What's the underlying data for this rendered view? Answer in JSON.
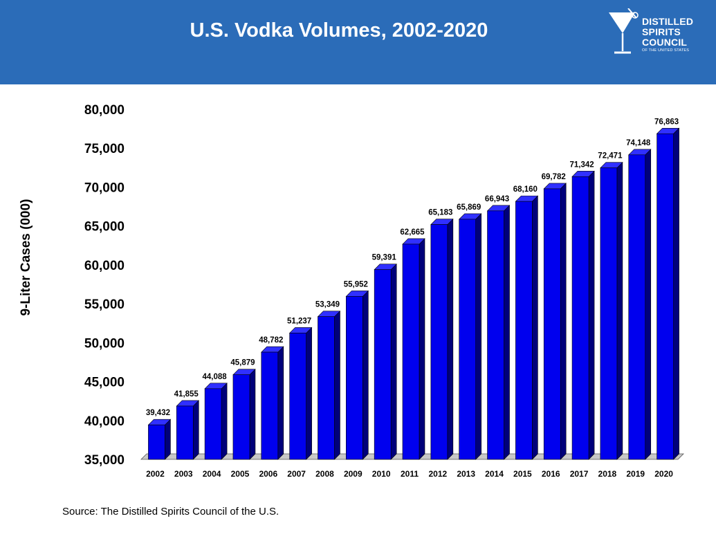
{
  "header": {
    "title": "U.S. Vodka Volumes, 2002-2020",
    "background_color": "#2b6cb8"
  },
  "logo": {
    "icon": "martini-glass-icon",
    "line1": "DISTILLED",
    "line2": "SPIRITS",
    "line3": "COUNCIL",
    "subline": "OF THE UNITED STATES"
  },
  "source": "Source:  The Distilled Spirits Council of the U.S.",
  "chart_data": {
    "type": "bar",
    "title": "U.S. Vodka Volumes, 2002-2020",
    "ylabel": "9-Liter Cases (000)",
    "xlabel": "",
    "ylim": [
      35000,
      80000
    ],
    "yticks": [
      35000,
      40000,
      45000,
      50000,
      55000,
      60000,
      65000,
      70000,
      75000,
      80000
    ],
    "ytick_labels": [
      "35,000",
      "40,000",
      "45,000",
      "50,000",
      "55,000",
      "60,000",
      "65,000",
      "70,000",
      "75,000",
      "80,000"
    ],
    "grid": false,
    "three_d": true,
    "bar_color": "#0000ee",
    "categories": [
      "2002",
      "2003",
      "2004",
      "2005",
      "2006",
      "2007",
      "2008",
      "2009",
      "2010",
      "2011",
      "2012",
      "2013",
      "2014",
      "2015",
      "2016",
      "2017",
      "2018",
      "2019",
      "2020"
    ],
    "values": [
      39432,
      41855,
      44088,
      45879,
      48782,
      51237,
      53349,
      55952,
      59391,
      62665,
      65183,
      65869,
      66943,
      68160,
      69782,
      71342,
      72471,
      74148,
      76863
    ],
    "value_labels": [
      "39,432",
      "41,855",
      "44,088",
      "45,879",
      "48,782",
      "51,237",
      "53,349",
      "55,952",
      "59,391",
      "62,665",
      "65,183",
      "65,869",
      "66,943",
      "68,160",
      "69,782",
      "71,342",
      "72,471",
      "74,148",
      "76,863"
    ]
  }
}
